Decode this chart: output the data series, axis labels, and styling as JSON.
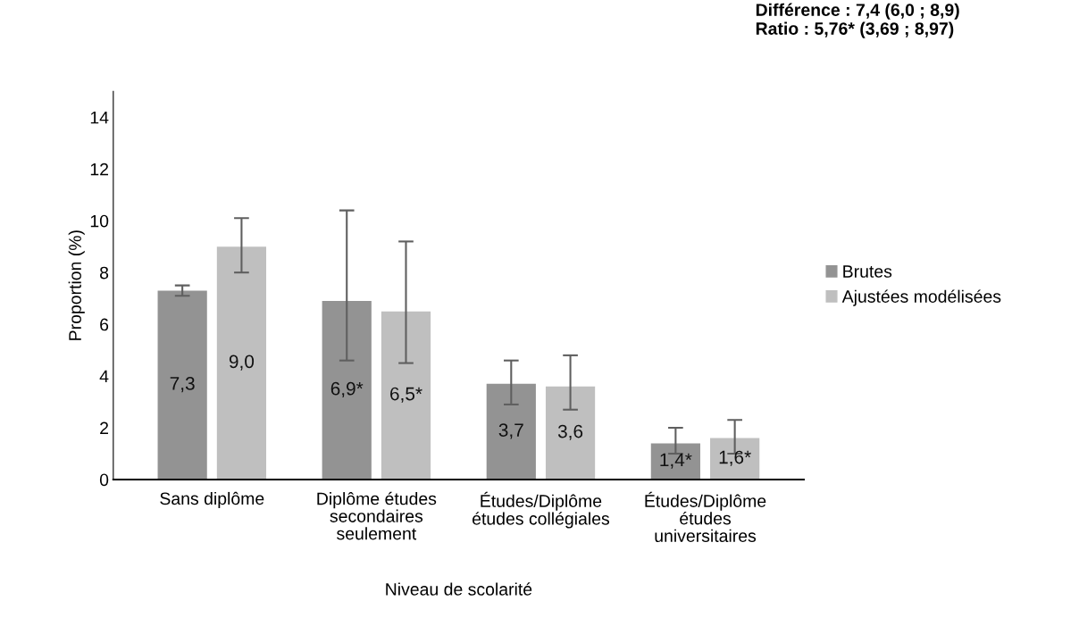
{
  "chart_data": {
    "type": "bar",
    "xlabel": "Niveau de scolarité",
    "ylabel": "Proportion (%)",
    "categories": [
      "Sans diplôme",
      "Diplôme études\nsecondaires\nseulement",
      "Études/Diplôme\nétudes collégiales",
      "Études/Diplôme\nétudes\nuniversitaires"
    ],
    "series": [
      {
        "name": "Brutes",
        "color": "#939393",
        "values": [
          7.3,
          6.9,
          3.7,
          1.4
        ],
        "errors": [
          [
            7.1,
            7.5
          ],
          [
            4.6,
            10.4
          ],
          [
            2.9,
            4.6
          ],
          [
            1.0,
            2.0
          ]
        ],
        "value_labels": [
          "7,3",
          "6,9*",
          "3,7",
          "1,4*"
        ]
      },
      {
        "name": "Ajustées modélisées",
        "color": "#bfbfbf",
        "values": [
          9.0,
          6.5,
          3.6,
          1.6
        ],
        "errors": [
          [
            8.0,
            10.1
          ],
          [
            4.5,
            9.2
          ],
          [
            2.7,
            4.8
          ],
          [
            1.0,
            2.3
          ]
        ],
        "value_labels": [
          "9,0",
          "6,5*",
          "3,6",
          "1,6*"
        ]
      }
    ],
    "ylim": [
      0,
      15
    ],
    "yticks": [
      0,
      2,
      4,
      6,
      8,
      10,
      12,
      14
    ],
    "grid": false,
    "legend": "right",
    "annotations": [
      "Différence : 7,4 (6,0 ; 8,9)\nRatio : 5,76* (3,69 ; 8,97)"
    ]
  }
}
